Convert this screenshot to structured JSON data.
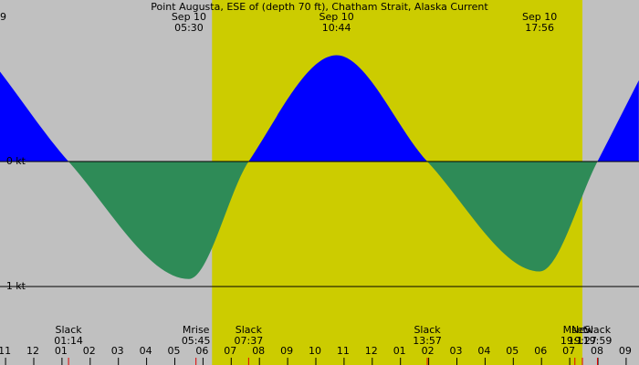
{
  "chart_data": {
    "type": "area",
    "title": "Point Augusta, ESE of (depth 70 ft), Chatham Strait, Alaska Current",
    "corner_label": "9",
    "x": [
      -1.2,
      1.233,
      5.5,
      7.617,
      10.733,
      13.95,
      17.933,
      19.983,
      21.45
    ],
    "values": [
      0.72,
      0,
      -0.94,
      0,
      0.85,
      0,
      -0.88,
      0,
      0.65
    ],
    "flood_color": "#0000ff",
    "ebb_color": "#2e8b57",
    "background": "#c0c0c0",
    "daylight_color": "#cccc00",
    "daylight": [
      6.32,
      19.45
    ],
    "xlim": [
      -1.197,
      21.456
    ],
    "ylim": [
      -1.628,
      1.292
    ],
    "yticks": [
      {
        "value": 0,
        "label": "0 kt"
      },
      {
        "value": -1,
        "label": "-1 kt"
      }
    ],
    "xticks": [
      {
        "value": -1,
        "label": "11"
      },
      {
        "value": 0,
        "label": "12"
      },
      {
        "value": 1,
        "label": "01"
      },
      {
        "value": 2,
        "label": "02"
      },
      {
        "value": 3,
        "label": "03"
      },
      {
        "value": 4,
        "label": "04"
      },
      {
        "value": 5,
        "label": "05"
      },
      {
        "value": 6,
        "label": "06"
      },
      {
        "value": 7,
        "label": "07"
      },
      {
        "value": 8,
        "label": "08"
      },
      {
        "value": 9,
        "label": "09"
      },
      {
        "value": 10,
        "label": "10"
      },
      {
        "value": 11,
        "label": "11"
      },
      {
        "value": 12,
        "label": "12"
      },
      {
        "value": 13,
        "label": "01"
      },
      {
        "value": 14,
        "label": "02"
      },
      {
        "value": 15,
        "label": "03"
      },
      {
        "value": 16,
        "label": "04"
      },
      {
        "value": 17,
        "label": "05"
      },
      {
        "value": 18,
        "label": "06"
      },
      {
        "value": 19,
        "label": "07"
      },
      {
        "value": 20,
        "label": "08"
      },
      {
        "value": 21,
        "label": "09"
      }
    ],
    "top_labels": [
      {
        "x": 5.5,
        "date": "Sep 10",
        "time": "05:30"
      },
      {
        "x": 10.733,
        "date": "Sep 10",
        "time": "10:44"
      },
      {
        "x": 17.933,
        "date": "Sep 10",
        "time": "17:56"
      }
    ],
    "bottom_labels": [
      {
        "x": 1.233,
        "name": "Slack",
        "time": "01:14"
      },
      {
        "x": 5.75,
        "name": "Mrise",
        "time": "05:45"
      },
      {
        "x": 7.617,
        "name": "Slack",
        "time": "07:37"
      },
      {
        "x": 13.95,
        "name": "Slack",
        "time": "13:57"
      },
      {
        "x": 19.183,
        "name": "Mset",
        "time": "19:11"
      },
      {
        "x": 19.45,
        "name": "New",
        "time": "19:27"
      },
      {
        "x": 19.983,
        "name": "Slack",
        "time": "19:59"
      }
    ]
  }
}
